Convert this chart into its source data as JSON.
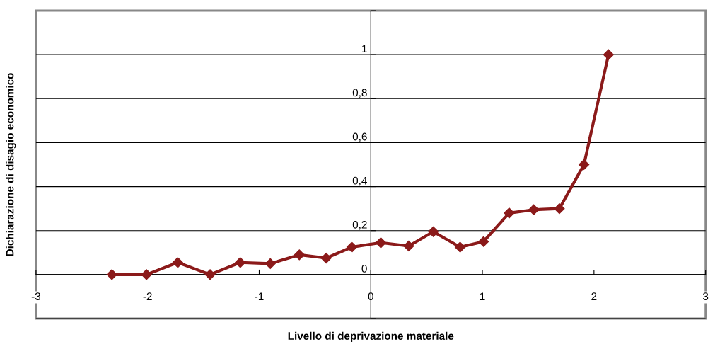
{
  "chart_data": {
    "type": "line",
    "xlabel": "Livello di deprivazione materiale",
    "ylabel": "Dichiarazione di disagio economico",
    "x": [
      -2.32,
      -2.01,
      -1.73,
      -1.44,
      -1.17,
      -0.9,
      -0.64,
      -0.4,
      -0.17,
      0.09,
      0.34,
      0.56,
      0.8,
      1.01,
      1.24,
      1.46,
      1.69,
      1.91,
      2.13
    ],
    "series": [
      {
        "color": "#8b1a1a",
        "values": [
          0,
          0,
          0.055,
          0,
          0.055,
          0.05,
          0.09,
          0.075,
          0.125,
          0.145,
          0.13,
          0.195,
          0.125,
          0.15,
          0.28,
          0.295,
          0.3,
          0.5,
          1.0
        ]
      }
    ],
    "xlim": [
      -3,
      3
    ],
    "xticks": [
      -3,
      -2,
      -1,
      0,
      1,
      2,
      3
    ],
    "ylim": [
      -0.2,
      1.2
    ],
    "yticks": [
      {
        "value": -0.2,
        "label": null
      },
      {
        "value": 0,
        "label": "0"
      },
      {
        "value": 0.2,
        "label": "0,2"
      },
      {
        "value": 0.4,
        "label": "0,4"
      },
      {
        "value": 0.6,
        "label": "0,6"
      },
      {
        "value": 0.8,
        "label": "0,8"
      },
      {
        "value": 1,
        "label": "1"
      },
      {
        "value": 1.2,
        "label": null
      }
    ],
    "grid": "y",
    "marker": "diamond",
    "line_style": "solid"
  }
}
